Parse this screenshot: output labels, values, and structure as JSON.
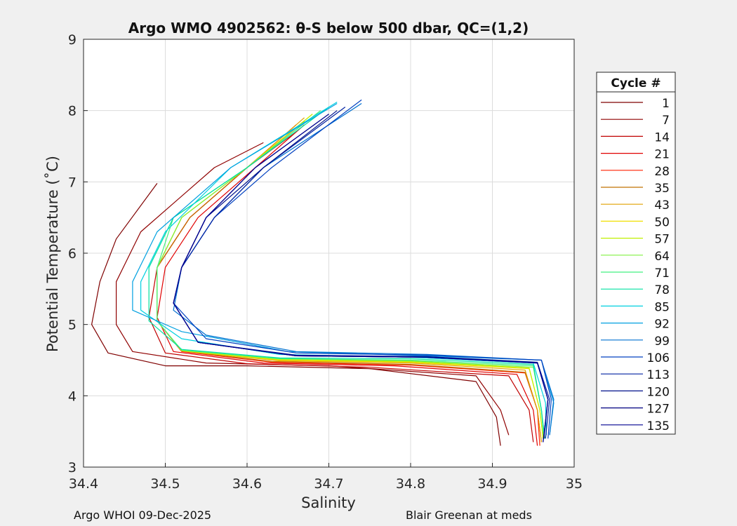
{
  "chart_data": {
    "type": "line",
    "title": "Argo WMO 4902562: θ-S below 500 dbar,  QC=(1,2)",
    "xlabel": "Salinity",
    "ylabel": "Potential Temperature (˚C)",
    "xlim": [
      34.4,
      35.0
    ],
    "ylim": [
      3,
      9
    ],
    "xticks": [
      34.4,
      34.5,
      34.6,
      34.7,
      34.8,
      34.9,
      35.0
    ],
    "xtick_labels": [
      "34.4",
      "34.5",
      "34.6",
      "34.7",
      "34.8",
      "34.9",
      "35"
    ],
    "yticks": [
      3,
      4,
      5,
      6,
      7,
      8,
      9
    ],
    "ytick_labels": [
      "3",
      "4",
      "5",
      "6",
      "7",
      "8",
      "9"
    ],
    "grid": true,
    "legend_title": "Cycle #",
    "legend_position": "right",
    "series": [
      {
        "name": "1",
        "color": "#7f0000",
        "x": [
          34.49,
          34.44,
          34.42,
          34.41,
          34.43,
          34.5,
          34.6,
          34.75,
          34.88,
          34.905,
          34.91
        ],
        "y": [
          6.98,
          6.2,
          5.6,
          5.0,
          4.6,
          4.42,
          4.42,
          4.38,
          4.2,
          3.7,
          3.3
        ]
      },
      {
        "name": "7",
        "color": "#8f0000",
        "x": [
          34.62,
          34.56,
          34.47,
          34.44,
          34.44,
          34.46,
          34.55,
          34.7,
          34.88,
          34.91,
          34.92
        ],
        "y": [
          7.55,
          7.2,
          6.3,
          5.6,
          5.0,
          4.62,
          4.46,
          4.42,
          4.28,
          3.8,
          3.45
        ]
      },
      {
        "name": "14",
        "color": "#c00000",
        "x": [
          34.66,
          34.6,
          34.53,
          34.49,
          34.48,
          34.5,
          34.6,
          34.75,
          34.92,
          34.945,
          34.95
        ],
        "y": [
          7.7,
          7.2,
          6.5,
          5.8,
          5.1,
          4.6,
          4.45,
          4.4,
          4.28,
          3.8,
          3.35
        ]
      },
      {
        "name": "21",
        "color": "#e00000",
        "x": [
          34.67,
          34.61,
          34.54,
          34.5,
          34.49,
          34.51,
          34.62,
          34.78,
          34.93,
          34.95,
          34.955
        ],
        "y": [
          7.8,
          7.2,
          6.5,
          5.8,
          5.1,
          4.62,
          4.46,
          4.42,
          4.3,
          3.8,
          3.3
        ]
      },
      {
        "name": "28",
        "color": "#ff2000",
        "x": [
          34.66,
          34.6,
          34.53,
          34.49,
          34.49,
          34.52,
          34.63,
          34.8,
          34.94,
          34.955,
          34.958
        ],
        "y": [
          7.8,
          7.2,
          6.5,
          5.8,
          5.05,
          4.62,
          4.47,
          4.43,
          4.32,
          3.8,
          3.3
        ]
      },
      {
        "name": "35",
        "color": "#c07000",
        "x": [
          34.67,
          34.6,
          34.53,
          34.49,
          34.49,
          34.52,
          34.63,
          34.8,
          34.94,
          34.955,
          34.96
        ],
        "y": [
          7.85,
          7.2,
          6.5,
          5.8,
          5.05,
          4.63,
          4.48,
          4.44,
          4.33,
          3.8,
          3.35
        ]
      },
      {
        "name": "43",
        "color": "#e0a000",
        "x": [
          34.67,
          34.6,
          34.52,
          34.49,
          34.49,
          34.52,
          34.64,
          34.8,
          34.94,
          34.955,
          34.96
        ],
        "y": [
          7.9,
          7.2,
          6.5,
          5.8,
          5.05,
          4.63,
          4.49,
          4.46,
          4.36,
          3.8,
          3.35
        ]
      },
      {
        "name": "50",
        "color": "#f0e000",
        "x": [
          34.68,
          34.6,
          34.52,
          34.49,
          34.49,
          34.52,
          34.64,
          34.8,
          34.945,
          34.958,
          34.962
        ],
        "y": [
          7.95,
          7.2,
          6.5,
          5.8,
          5.05,
          4.63,
          4.5,
          4.47,
          4.38,
          3.8,
          3.4
        ]
      },
      {
        "name": "57",
        "color": "#c0f000",
        "x": [
          34.68,
          34.6,
          34.52,
          34.49,
          34.49,
          34.52,
          34.64,
          34.8,
          34.945,
          34.958,
          34.962
        ],
        "y": [
          7.95,
          7.2,
          6.5,
          5.8,
          5.05,
          4.63,
          4.51,
          4.48,
          4.39,
          3.8,
          3.4
        ]
      },
      {
        "name": "64",
        "color": "#80f040",
        "x": [
          34.69,
          34.6,
          34.52,
          34.49,
          34.49,
          34.52,
          34.64,
          34.8,
          34.95,
          34.96,
          34.963
        ],
        "y": [
          8.0,
          7.2,
          6.5,
          5.8,
          5.05,
          4.64,
          4.52,
          4.49,
          4.4,
          3.8,
          3.4
        ]
      },
      {
        "name": "71",
        "color": "#40f080",
        "x": [
          34.69,
          34.6,
          34.51,
          34.49,
          34.49,
          34.52,
          34.64,
          34.8,
          34.95,
          34.96,
          34.963
        ],
        "y": [
          8.0,
          7.2,
          6.5,
          5.8,
          5.05,
          4.64,
          4.52,
          4.5,
          4.42,
          3.8,
          3.4
        ]
      },
      {
        "name": "78",
        "color": "#00e0a0",
        "x": [
          34.7,
          34.6,
          34.51,
          34.48,
          34.48,
          34.52,
          34.64,
          34.8,
          34.95,
          34.96,
          34.964
        ],
        "y": [
          8.05,
          7.2,
          6.5,
          5.8,
          5.05,
          4.65,
          4.53,
          4.52,
          4.44,
          3.8,
          3.4
        ]
      },
      {
        "name": "85",
        "color": "#00d0e0",
        "x": [
          34.71,
          34.58,
          34.5,
          34.47,
          34.47,
          34.52,
          34.64,
          34.8,
          34.95,
          34.965,
          34.966
        ],
        "y": [
          8.12,
          7.2,
          6.3,
          5.6,
          5.2,
          4.8,
          4.58,
          4.54,
          4.46,
          3.9,
          3.45
        ]
      },
      {
        "name": "92",
        "color": "#00a0e0",
        "x": [
          34.71,
          34.58,
          34.49,
          34.46,
          34.46,
          34.52,
          34.65,
          34.82,
          34.96,
          34.975,
          34.97
        ],
        "y": [
          8.1,
          7.2,
          6.3,
          5.6,
          5.2,
          4.9,
          4.62,
          4.56,
          4.5,
          3.9,
          3.45
        ]
      },
      {
        "name": "99",
        "color": "#0070d0",
        "x": [
          34.74,
          34.62,
          34.56,
          34.52,
          34.51,
          34.55,
          34.66,
          34.82,
          34.96,
          34.975,
          34.97
        ],
        "y": [
          8.1,
          7.2,
          6.5,
          5.8,
          5.2,
          4.85,
          4.62,
          4.58,
          4.5,
          3.95,
          3.45
        ]
      },
      {
        "name": "106",
        "color": "#0040c0",
        "x": [
          34.74,
          34.63,
          34.56,
          34.52,
          34.51,
          34.55,
          34.66,
          34.82,
          34.96,
          34.972,
          34.968
        ],
        "y": [
          8.15,
          7.2,
          6.5,
          5.8,
          5.3,
          4.8,
          4.6,
          4.57,
          4.5,
          3.95,
          3.4
        ]
      },
      {
        "name": "113",
        "color": "#0020a0",
        "x": [
          34.72,
          34.62,
          34.56,
          34.52,
          34.51,
          34.54,
          34.66,
          34.82,
          34.955,
          34.97,
          34.965
        ],
        "y": [
          8.05,
          7.2,
          6.5,
          5.8,
          5.3,
          4.75,
          4.57,
          4.55,
          4.47,
          3.95,
          3.4
        ]
      },
      {
        "name": "120",
        "color": "#00108a",
        "x": [
          34.71,
          34.62,
          34.55,
          34.52,
          34.51,
          34.54,
          34.66,
          34.82,
          34.955,
          34.968,
          34.963
        ],
        "y": [
          8.0,
          7.2,
          6.5,
          5.8,
          5.3,
          4.75,
          4.56,
          4.54,
          4.46,
          3.95,
          3.4
        ]
      },
      {
        "name": "127",
        "color": "#000080",
        "x": [
          34.7,
          34.61,
          34.55,
          34.52,
          34.51,
          34.54,
          34.66,
          34.82,
          34.955,
          34.968,
          34.962
        ],
        "y": [
          7.95,
          7.2,
          6.5,
          5.8,
          5.3,
          4.75,
          4.56,
          4.54,
          4.46,
          3.95,
          3.35
        ]
      },
      {
        "name": "135",
        "color": "#000090",
        "x": [
          34.7,
          34.61,
          34.55,
          34.52,
          34.51,
          34.54,
          34.66,
          34.82,
          34.955,
          34.968,
          34.962
        ],
        "y": [
          7.95,
          7.2,
          6.5,
          5.8,
          5.3,
          4.75,
          4.56,
          4.54,
          4.46,
          3.95,
          3.35
        ]
      }
    ]
  },
  "footer": {
    "left": "Argo WHOI 09-Dec-2025",
    "right": "Blair Greenan at meds"
  }
}
